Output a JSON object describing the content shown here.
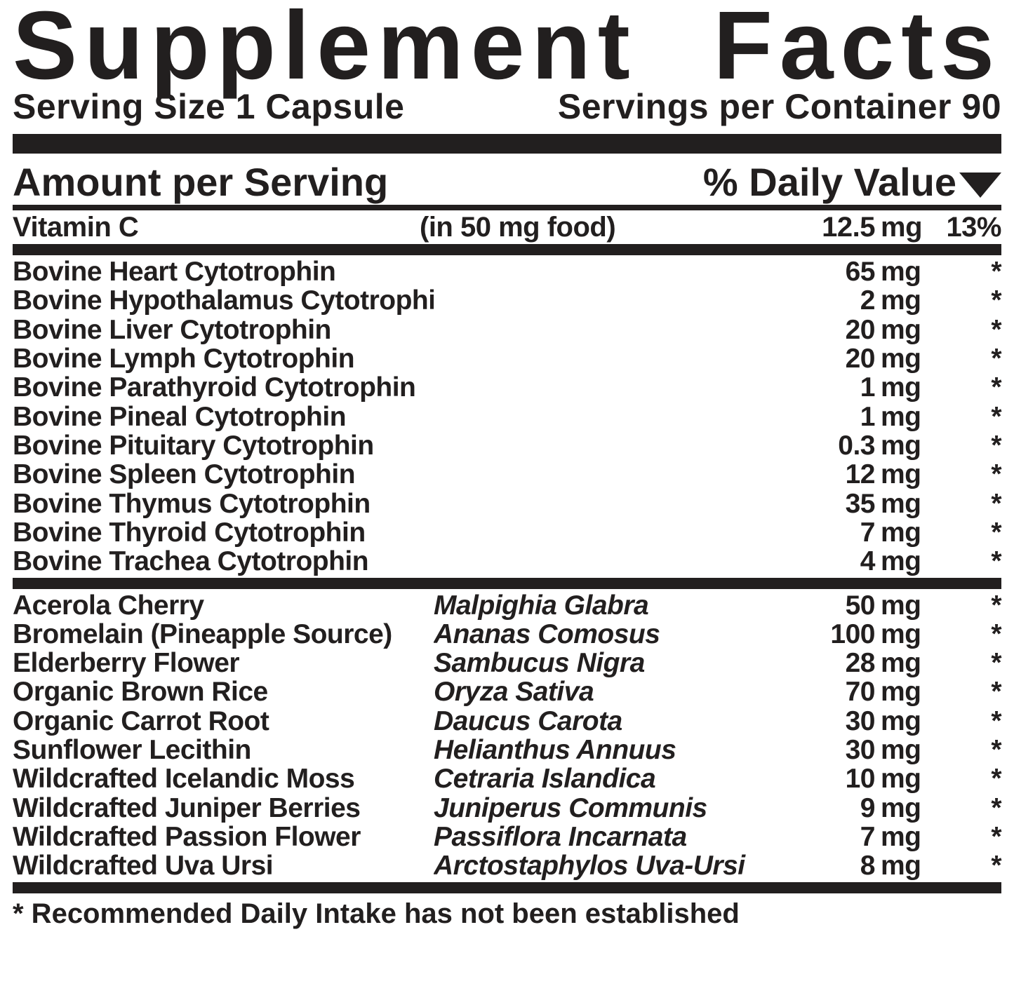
{
  "title": "Supplement Facts",
  "serving_size_label": "Serving Size 1 Capsule",
  "servings_per_container_label": "Servings per Container 90",
  "amount_header": "Amount per Serving",
  "dv_header": "% Daily Value",
  "vitamin_c": {
    "name": "Vitamin C",
    "note": "(in 50 mg food)",
    "amount": "12.5",
    "unit": "mg",
    "dv": "13%"
  },
  "cytotrophins": [
    {
      "name": "Bovine Heart Cytotrophin",
      "amount": "65",
      "unit": "mg",
      "dv": "*"
    },
    {
      "name": "Bovine Hypothalamus Cytotrophin",
      "amount": "2",
      "unit": "mg",
      "dv": "*"
    },
    {
      "name": "Bovine Liver Cytotrophin",
      "amount": "20",
      "unit": "mg",
      "dv": "*"
    },
    {
      "name": "Bovine Lymph Cytotrophin",
      "amount": "20",
      "unit": "mg",
      "dv": "*"
    },
    {
      "name": "Bovine Parathyroid Cytotrophin",
      "amount": "1",
      "unit": "mg",
      "dv": "*"
    },
    {
      "name": "Bovine Pineal Cytotrophin",
      "amount": "1",
      "unit": "mg",
      "dv": "*"
    },
    {
      "name": "Bovine Pituitary Cytotrophin",
      "amount": "0.3",
      "unit": "mg",
      "dv": "*"
    },
    {
      "name": "Bovine Spleen Cytotrophin",
      "amount": "12",
      "unit": "mg",
      "dv": "*"
    },
    {
      "name": "Bovine Thymus Cytotrophin",
      "amount": "35",
      "unit": "mg",
      "dv": "*"
    },
    {
      "name": "Bovine Thyroid Cytotrophin",
      "amount": "7",
      "unit": "mg",
      "dv": "*"
    },
    {
      "name": "Bovine Trachea Cytotrophin",
      "amount": "4",
      "unit": "mg",
      "dv": "*"
    }
  ],
  "botanicals": [
    {
      "name": "Acerola Cherry",
      "latin": "Malpighia Glabra",
      "amount": "50",
      "unit": "mg",
      "dv": "*"
    },
    {
      "name": "Bromelain (Pineapple Source)",
      "latin": "Ananas Comosus",
      "amount": "100",
      "unit": "mg",
      "dv": "*"
    },
    {
      "name": "Elderberry Flower",
      "latin": "Sambucus Nigra",
      "amount": "28",
      "unit": "mg",
      "dv": "*"
    },
    {
      "name": "Organic Brown Rice",
      "latin": "Oryza Sativa",
      "amount": "70",
      "unit": "mg",
      "dv": "*"
    },
    {
      "name": "Organic Carrot Root",
      "latin": "Daucus Carota",
      "amount": "30",
      "unit": "mg",
      "dv": "*"
    },
    {
      "name": "Sunflower Lecithin",
      "latin": "Helianthus Annuus",
      "amount": "30",
      "unit": "mg",
      "dv": "*"
    },
    {
      "name": "Wildcrafted Icelandic Moss",
      "latin": "Cetraria Islandica",
      "amount": "10",
      "unit": "mg",
      "dv": "*"
    },
    {
      "name": "Wildcrafted Juniper Berries",
      "latin": "Juniperus Communis",
      "amount": "9",
      "unit": "mg",
      "dv": "*"
    },
    {
      "name": "Wildcrafted Passion Flower",
      "latin": "Passiflora Incarnata",
      "amount": "7",
      "unit": "mg",
      "dv": "*"
    },
    {
      "name": "Wildcrafted Uva Ursi",
      "latin": "Arctostaphylos Uva-Ursi",
      "amount": "8",
      "unit": "mg",
      "dv": "*"
    }
  ],
  "footnote": "* Recommended Daily Intake has not been established"
}
